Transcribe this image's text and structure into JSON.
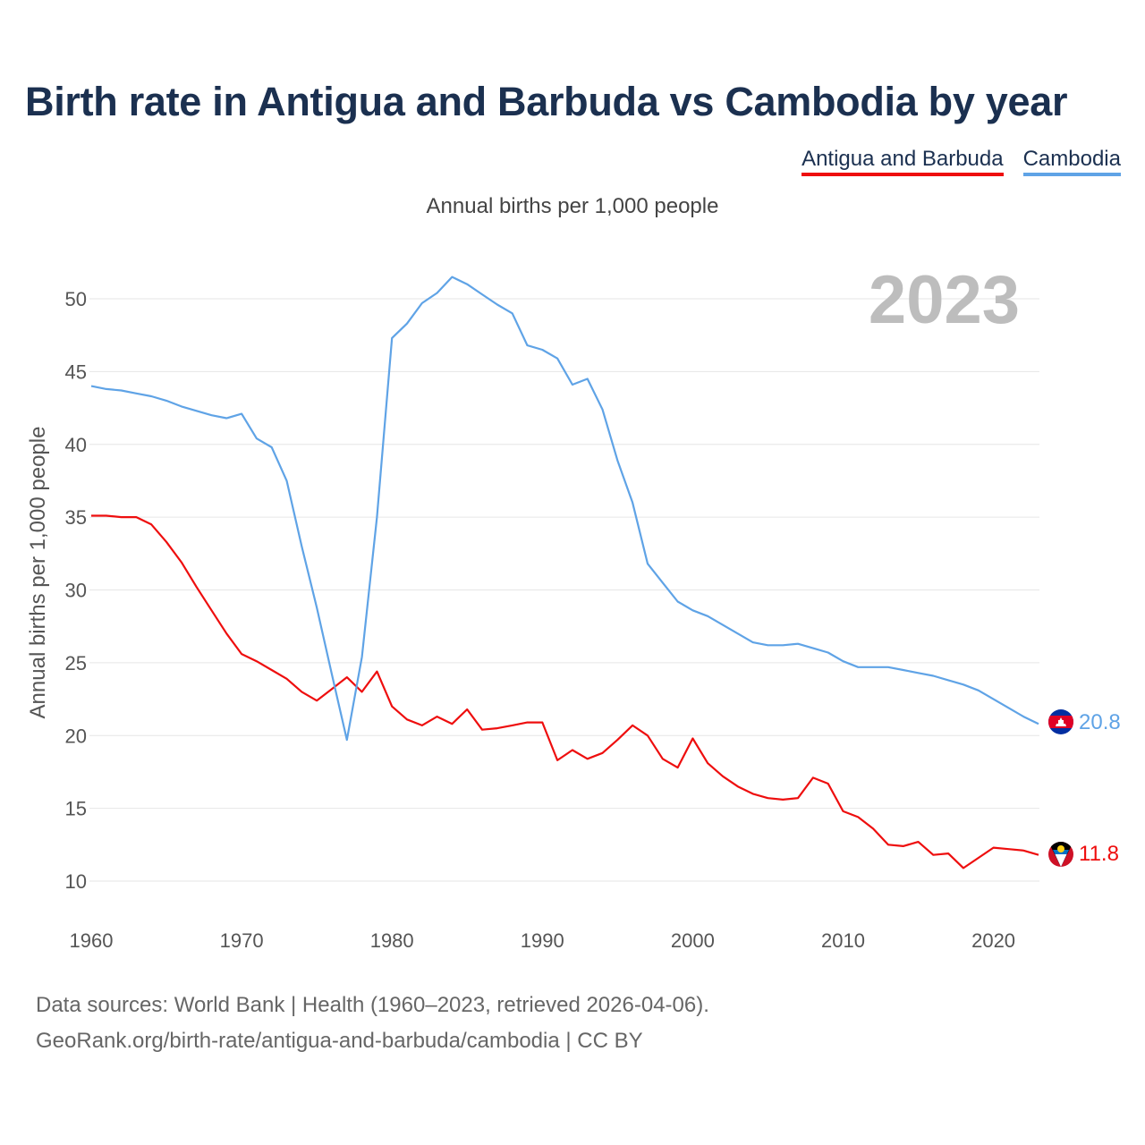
{
  "title": "Birth rate in Antigua and Barbuda vs Cambodia by year",
  "subtitle": "Annual births per 1,000 people",
  "year_label": "2023",
  "footer": {
    "line1": "Data sources: World Bank | Health (1960–2023, retrieved 2026-04-06).",
    "line2": "GeoRank.org/birth-rate/antigua-and-barbuda/cambodia | CC BY"
  },
  "colors": {
    "antigua": "#ee0e0e",
    "cambodia": "#5fa3e6",
    "grid": "#e6e6e6"
  },
  "chart_data": {
    "type": "line",
    "title": "Birth rate in Antigua and Barbuda vs Cambodia by year",
    "xlabel": "",
    "ylabel": "Annual births per 1,000 people",
    "xlim": [
      1960,
      2023
    ],
    "ylim": [
      10,
      52
    ],
    "xticks": [
      1960,
      1970,
      1980,
      1990,
      2000,
      2010,
      2020
    ],
    "yticks": [
      10,
      15,
      20,
      25,
      30,
      35,
      40,
      45,
      50
    ],
    "x": [
      1960,
      1961,
      1962,
      1963,
      1964,
      1965,
      1966,
      1967,
      1968,
      1969,
      1970,
      1971,
      1972,
      1973,
      1974,
      1975,
      1976,
      1977,
      1978,
      1979,
      1980,
      1981,
      1982,
      1983,
      1984,
      1985,
      1986,
      1987,
      1988,
      1989,
      1990,
      1991,
      1992,
      1993,
      1994,
      1995,
      1996,
      1997,
      1998,
      1999,
      2000,
      2001,
      2002,
      2003,
      2004,
      2005,
      2006,
      2007,
      2008,
      2009,
      2010,
      2011,
      2012,
      2013,
      2014,
      2015,
      2016,
      2017,
      2018,
      2019,
      2020,
      2021,
      2022,
      2023
    ],
    "series": [
      {
        "name": "Antigua and Barbuda",
        "color": "#ee0e0e",
        "end_label": "11.8",
        "values": [
          35.1,
          35.1,
          35.0,
          35.0,
          34.5,
          33.3,
          31.9,
          30.2,
          28.6,
          27.0,
          25.6,
          25.1,
          24.5,
          23.9,
          23.0,
          22.4,
          23.2,
          24.0,
          23.0,
          24.4,
          22.0,
          21.1,
          20.7,
          21.3,
          20.8,
          21.8,
          20.4,
          20.5,
          20.7,
          20.9,
          20.9,
          18.3,
          19.0,
          18.4,
          18.8,
          19.7,
          20.7,
          20.0,
          18.4,
          17.8,
          19.8,
          18.1,
          17.2,
          16.5,
          16.0,
          15.7,
          15.6,
          15.7,
          17.1,
          16.7,
          14.8,
          14.4,
          13.6,
          12.5,
          12.4,
          12.7,
          11.8,
          11.9,
          10.9,
          11.6,
          12.3,
          12.2,
          12.1,
          11.8
        ]
      },
      {
        "name": "Cambodia",
        "color": "#5fa3e6",
        "end_label": "20.8",
        "values": [
          44.0,
          43.8,
          43.7,
          43.5,
          43.3,
          43.0,
          42.6,
          42.3,
          42.0,
          41.8,
          42.1,
          40.4,
          39.8,
          37.5,
          33.0,
          28.8,
          24.2,
          19.7,
          25.4,
          35.0,
          47.3,
          48.3,
          49.7,
          50.4,
          51.5,
          51.0,
          50.3,
          49.6,
          49.0,
          46.8,
          46.5,
          45.9,
          44.1,
          44.5,
          42.4,
          38.9,
          36.0,
          31.8,
          30.5,
          29.2,
          28.6,
          28.2,
          27.6,
          27.0,
          26.4,
          26.2,
          26.2,
          26.3,
          26.0,
          25.7,
          25.1,
          24.7,
          24.7,
          24.7,
          24.5,
          24.3,
          24.1,
          23.8,
          23.5,
          23.1,
          22.5,
          21.9,
          21.3,
          20.8
        ]
      }
    ]
  }
}
